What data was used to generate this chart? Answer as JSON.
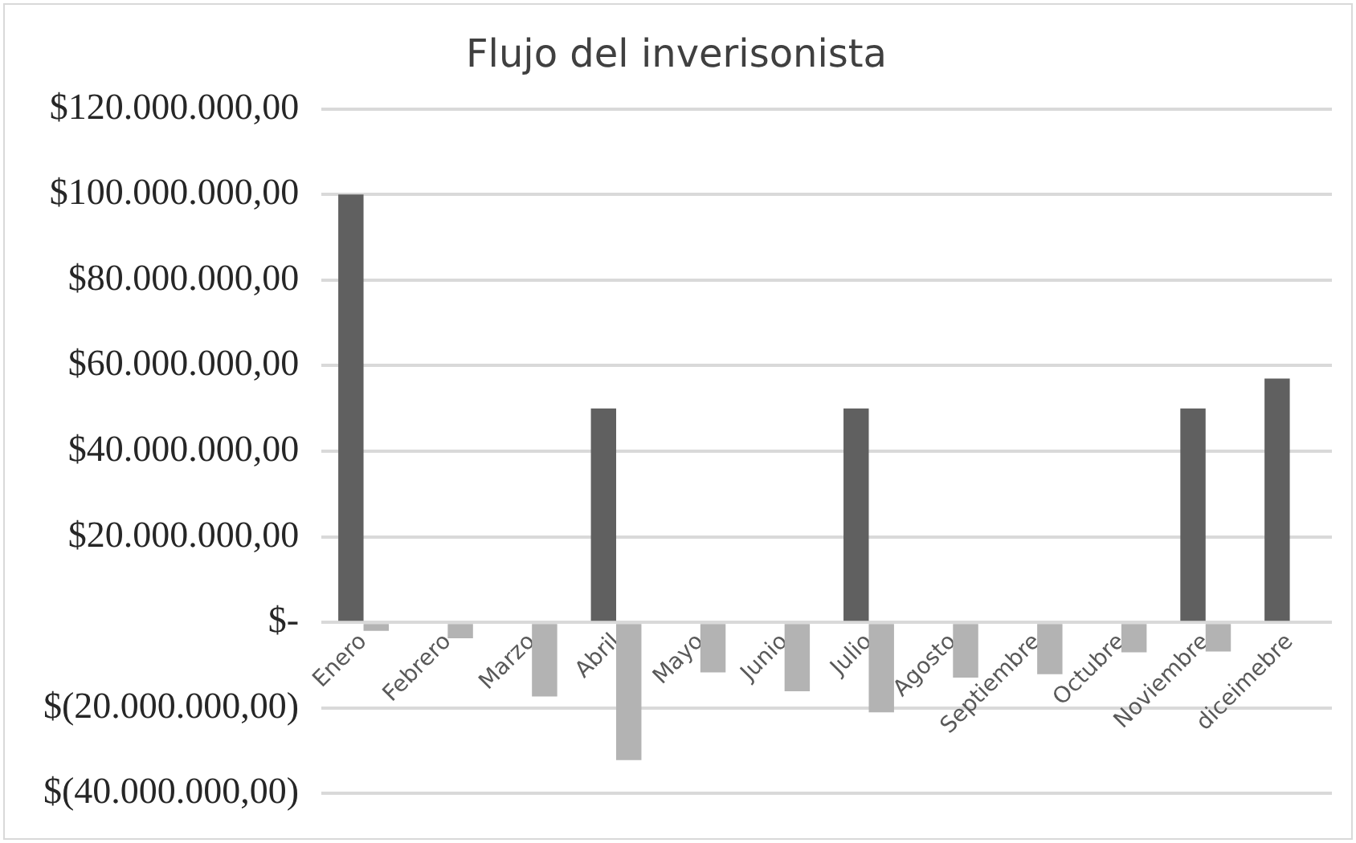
{
  "chart_data": {
    "type": "bar",
    "title": "Flujo del inverisonista",
    "categories": [
      "Enero",
      "Febrero",
      "Marzo",
      "Abril",
      "Mayo",
      "Junio",
      "Julio",
      "Agosto",
      "Septiembre",
      "Octubre",
      "Noviembre",
      "diceimebre"
    ],
    "series": [
      {
        "color": "#606060",
        "values": [
          100000000,
          null,
          null,
          50000000,
          null,
          null,
          50000000,
          null,
          null,
          null,
          50000000,
          57000000
        ]
      },
      {
        "color": "#b3b3b3",
        "values": [
          -2000000,
          -3700000,
          -17300000,
          -32200000,
          -11700000,
          -16100000,
          -21000000,
          -12900000,
          -12100000,
          -7000000,
          -6800000,
          null
        ]
      }
    ],
    "ylim": [
      -40000000,
      120000000
    ],
    "yticks": [
      {
        "value": -40000000,
        "label": "$(40.000.000,00)"
      },
      {
        "value": -20000000,
        "label": "$(20.000.000,00)"
      },
      {
        "value": 0,
        "label": "$-"
      },
      {
        "value": 20000000,
        "label": "$20.000.000,00"
      },
      {
        "value": 40000000,
        "label": "$40.000.000,00"
      },
      {
        "value": 60000000,
        "label": "$60.000.000,00"
      },
      {
        "value": 80000000,
        "label": "$80.000.000,00"
      },
      {
        "value": 100000000,
        "label": "$100.000.000,00"
      },
      {
        "value": 120000000,
        "label": "$120.000.000,00"
      }
    ],
    "grid": "y",
    "legend": false
  }
}
